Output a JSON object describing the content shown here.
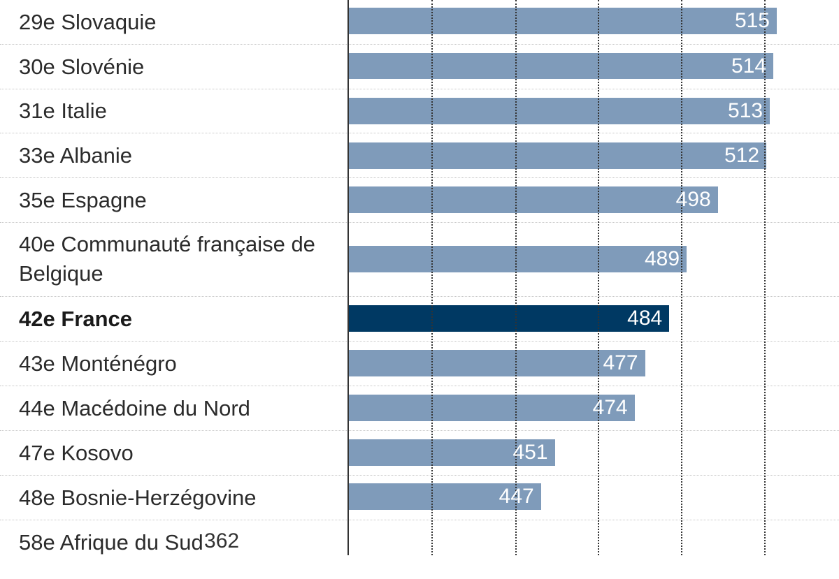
{
  "chart_data": {
    "type": "bar",
    "orientation": "horizontal",
    "categories": [
      "29e Slovaquie",
      "30e Slovénie",
      "31e Italie",
      "33e Albanie",
      "35e Espagne",
      "40e Communauté française de Belgique",
      "42e France",
      "43e Monténégro",
      "44e Macédoine du Nord",
      "47e Kosovo",
      "48e Bosnie-Herzégovine",
      "58e Afrique du Sud"
    ],
    "values": [
      515,
      514,
      513,
      512,
      498,
      489,
      484,
      477,
      474,
      451,
      447,
      362
    ],
    "highlight_index": 6,
    "muted_index": 11,
    "xlim": [
      0,
      520
    ],
    "grid": "dotted vertical",
    "colors": {
      "default": "#7f9bba",
      "highlight": "#003963",
      "muted": "#d1d1d1"
    }
  }
}
